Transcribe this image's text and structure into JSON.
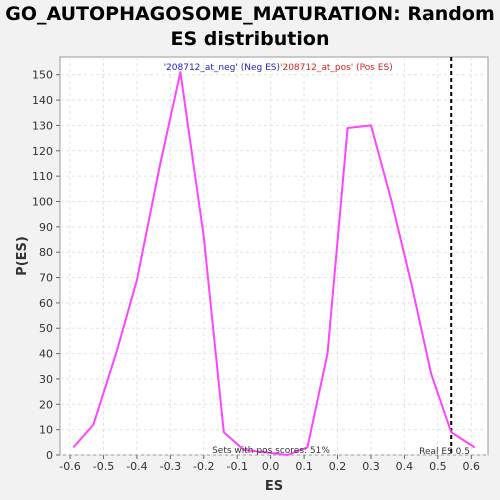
{
  "title_line1": "GO_AUTOPHAGOSOME_MATURATION: Random",
  "title_line2": "ES distribution",
  "colors": {
    "curve": "#ff44ff",
    "neg_label": "#2222cc",
    "pos_label": "#dd2222",
    "plot_bg": "#ffffff",
    "grid": "#e2e2e2"
  },
  "chart_data": {
    "type": "line",
    "xlabel": "ES",
    "ylabel": "P(ES)",
    "xlim": [
      -0.63,
      0.65
    ],
    "ylim": [
      0,
      157
    ],
    "x_ticks": [
      -0.6,
      -0.5,
      -0.4,
      -0.3,
      -0.2,
      -0.1,
      0.0,
      0.1,
      0.2,
      0.3,
      0.4,
      0.5,
      0.6
    ],
    "x_tick_labels": [
      "-0.6",
      "-0.5",
      "-0.4",
      "-0.3",
      "-0.2",
      "-0.1",
      "0.0",
      "0.1",
      "0.2",
      "0.3",
      "0.4",
      "0.5",
      "0.6"
    ],
    "y_ticks": [
      0,
      10,
      20,
      30,
      40,
      50,
      60,
      70,
      80,
      90,
      100,
      110,
      120,
      130,
      140,
      150
    ],
    "y_tick_labels": [
      "0",
      "10",
      "20",
      "30",
      "40",
      "50",
      "60",
      "70",
      "80",
      "90",
      "100",
      "110",
      "120",
      "130",
      "140",
      "150"
    ],
    "grid": true,
    "series": [
      {
        "x": [
          -0.59,
          -0.53,
          -0.46,
          -0.4,
          -0.33,
          -0.27,
          -0.2,
          -0.14,
          -0.08,
          -0.01,
          0.05,
          0.11,
          0.17,
          0.23,
          0.3,
          0.36,
          0.42,
          0.48,
          0.54,
          0.61
        ],
        "y": [
          3,
          12,
          41,
          69,
          115,
          151,
          86,
          9,
          2,
          1,
          0,
          3,
          40,
          129,
          130,
          101,
          68,
          32,
          9,
          3
        ]
      }
    ],
    "legend_neg": "'208712_at_neg' (Neg ES)",
    "legend_pos": "'208712_at_pos' (Pos ES)",
    "real_es_x": 0.54,
    "real_es_label": "Real ES 0.5",
    "pos_scores_label": "Sets with pos scores: 51%"
  }
}
